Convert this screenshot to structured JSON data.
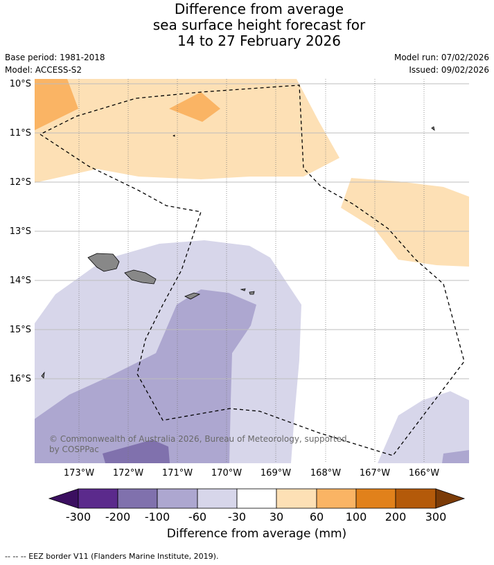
{
  "title": {
    "line1": "Difference from average",
    "line2": "sea surface height forecast for",
    "line3": "14 to 27 February 2026"
  },
  "meta": {
    "base_period": "Base period: 1981-2018",
    "model": "Model: ACCESS-S2",
    "model_run": "Model run: 07/02/2026",
    "issued": "Issued: 09/02/2026"
  },
  "map": {
    "lat_labels": [
      "10°S",
      "11°S",
      "12°S",
      "13°S",
      "14°S",
      "15°S",
      "16°S"
    ],
    "lon_labels": [
      "173°W",
      "172°W",
      "171°W",
      "170°W",
      "169°W",
      "168°W",
      "167°W",
      "166°W"
    ],
    "copyright": "© Commonwealth of Australia 2026, Bureau of Meteorology, supported by COSPPac",
    "land_color": "#888888",
    "eez_style": "dashed-black"
  },
  "colorbar": {
    "title": "Difference from average (mm)",
    "tick_labels": [
      "-300",
      "-200",
      "-100",
      "-60",
      "-30",
      "30",
      "60",
      "100",
      "200",
      "300"
    ],
    "colors": [
      "#3b0f60",
      "#5b2a8c",
      "#8071ad",
      "#ada7d0",
      "#d7d6ea",
      "#ffffff",
      "#fde0b5",
      "#fab464",
      "#e1811b",
      "#b45a0a",
      "#7b3b07"
    ]
  },
  "footer": "--  --  -- EEZ border V11 (Flanders Marine Institute, 2019)."
}
